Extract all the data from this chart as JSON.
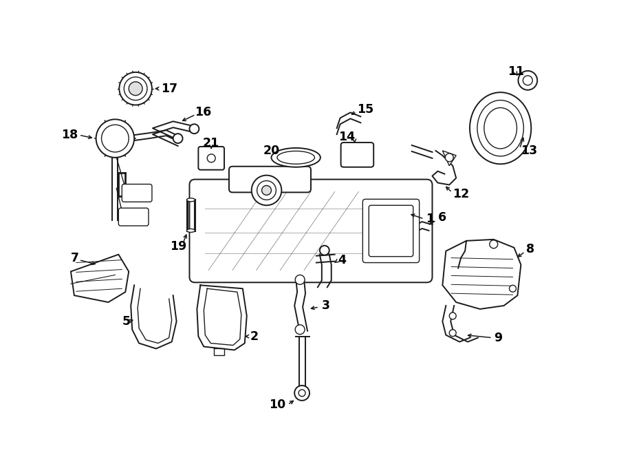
{
  "bg_color": "#ffffff",
  "line_color": "#1a1a1a",
  "text_color": "#000000",
  "lfs": 12.5,
  "fig_width": 9.0,
  "fig_height": 6.61,
  "dpi": 100
}
